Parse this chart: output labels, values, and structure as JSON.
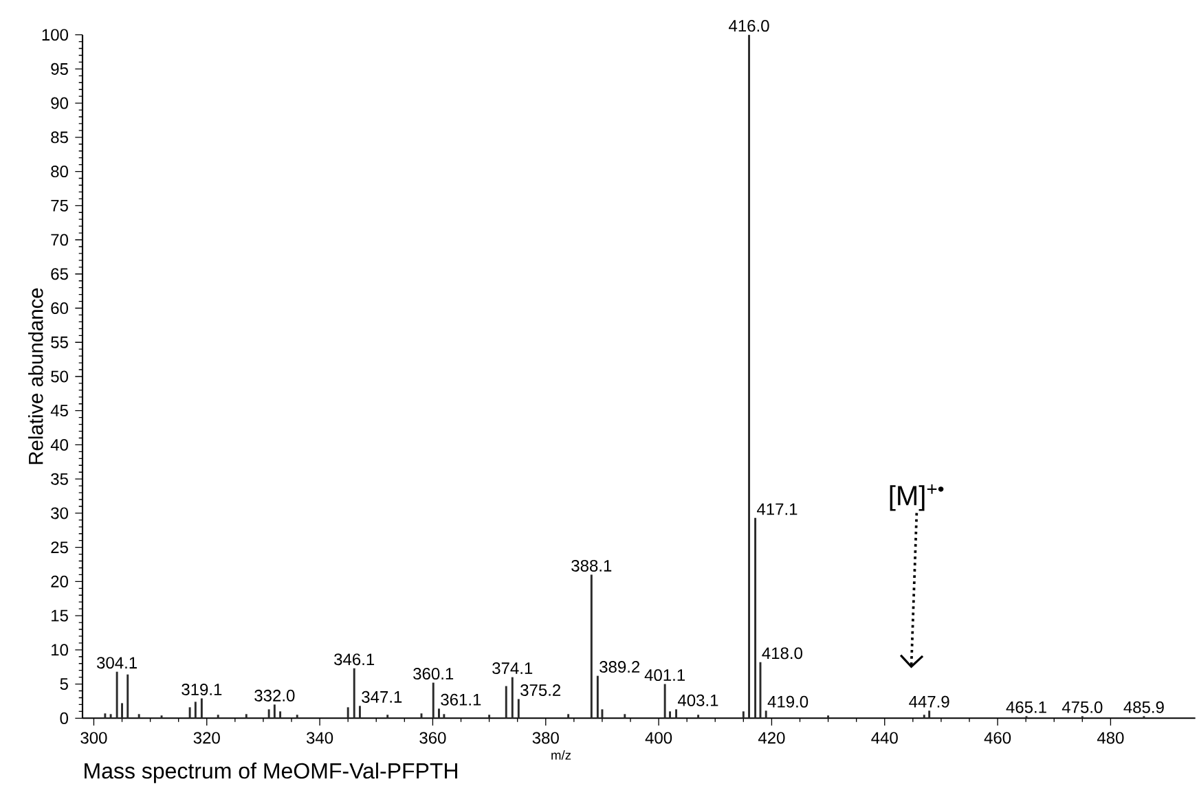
{
  "chart_data": {
    "type": "bar",
    "xlabel": "m/z",
    "ylabel": "Relative abundance",
    "x": [
      302,
      303,
      304.1,
      305,
      306,
      308,
      312,
      317,
      318,
      319.1,
      322,
      327,
      331,
      332.0,
      333,
      336,
      345,
      346.1,
      347.1,
      352,
      358,
      360.1,
      361.1,
      362,
      370,
      373,
      374.1,
      375.2,
      384,
      388.1,
      389.2,
      390,
      394,
      401.1,
      402,
      403.1,
      407,
      415,
      416.0,
      417.1,
      418.0,
      419.0,
      430,
      447,
      447.9,
      465.1,
      475.0,
      485.9
    ],
    "values": [
      0.7,
      0.6,
      6.8,
      2.2,
      6.4,
      0.6,
      0.4,
      1.6,
      2.4,
      2.9,
      0.5,
      0.6,
      1.3,
      2.0,
      1.0,
      0.5,
      1.6,
      7.3,
      1.8,
      0.5,
      0.7,
      5.2,
      1.4,
      0.6,
      0.5,
      4.7,
      6.0,
      2.8,
      0.6,
      21.0,
      6.2,
      1.3,
      0.6,
      5.0,
      1.0,
      1.3,
      0.5,
      1.0,
      100,
      29.3,
      8.2,
      1.1,
      0.4,
      0.5,
      1.1,
      0.3,
      0.3,
      0.3
    ],
    "color": "#2a2a2a",
    "xlim": [
      298,
      495
    ],
    "xticks": [
      300,
      320,
      340,
      360,
      380,
      400,
      420,
      440,
      460,
      480
    ],
    "grid": false,
    "ylim": [
      0,
      100
    ],
    "yticks": [
      0,
      5,
      10,
      15,
      20,
      25,
      30,
      35,
      40,
      45,
      50,
      55,
      60,
      65,
      70,
      75,
      80,
      85,
      90,
      95,
      100
    ],
    "annotations": [
      "Mass spectrum of MeOMF-Val-PFPTH",
      "[M]$^{+•}$",
      {
        "text": "304.1",
        "x": 304.1,
        "y": 6.8
      },
      {
        "text": "319.1",
        "x": 319.1,
        "y": 2.9
      },
      {
        "text": "332.0",
        "x": 332.0,
        "y": 2.0
      },
      {
        "text": "346.1",
        "x": 346.1,
        "y": 7.3
      },
      {
        "text": "347.1",
        "x": 347.1,
        "y": 1.8
      },
      {
        "text": "360.1",
        "x": 360.1,
        "y": 5.2
      },
      {
        "text": "361.1",
        "x": 361.1,
        "y": 1.4
      },
      {
        "text": "374.1",
        "x": 374.1,
        "y": 6.0
      },
      {
        "text": "375.2",
        "x": 375.2,
        "y": 2.8
      },
      {
        "text": "388.1",
        "x": 388.1,
        "y": 21.0
      },
      {
        "text": "389.2",
        "x": 389.2,
        "y": 6.2
      },
      {
        "text": "401.1",
        "x": 401.1,
        "y": 5.0
      },
      {
        "text": "403.1",
        "x": 403.1,
        "y": 1.3
      },
      {
        "text": "416.0",
        "x": 416.0,
        "y": 100
      },
      {
        "text": "417.1",
        "x": 417.1,
        "y": 29.3
      },
      {
        "text": "418.0",
        "x": 418.0,
        "y": 8.2
      },
      {
        "text": "419.0",
        "x": 419.0,
        "y": 1.1
      },
      {
        "text": "447.9",
        "x": 447.9,
        "y": 1.1
      },
      {
        "text": "465.1",
        "x": 465.1,
        "y": 0.3
      },
      {
        "text": "475.0",
        "x": 475.0,
        "y": 0.3
      },
      {
        "text": "485.9",
        "x": 485.9,
        "y": 0.3
      }
    ]
  }
}
